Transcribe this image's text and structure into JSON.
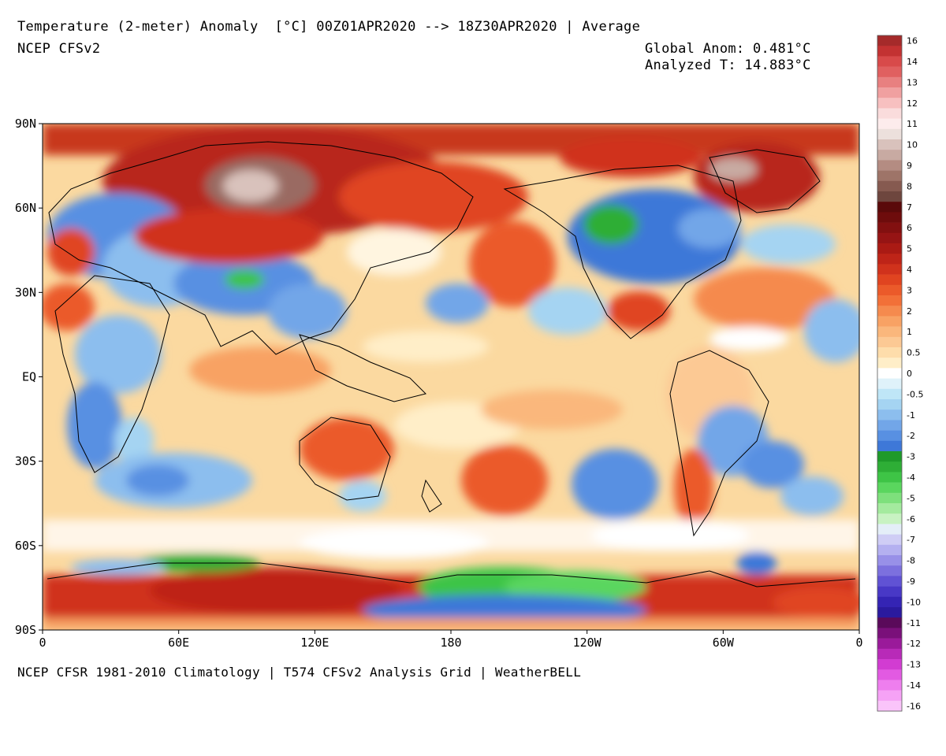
{
  "header": {
    "title": "Temperature (2-meter) Anomaly  [°C] 00Z01APR2020 --> 18Z30APR2020 | Average",
    "model": "NCEP CFSv2",
    "global_anom": "Global Anom: 0.481°C",
    "analyzed_t": "Analyzed T: 14.883°C"
  },
  "footer": {
    "text": "NCEP CFSR 1981-2010 Climatology | T574 CFSv2 Analysis Grid | WeatherBELL"
  },
  "map": {
    "lat_labels": [
      "90N",
      "60N",
      "30N",
      "EQ",
      "30S",
      "60S",
      "90S"
    ],
    "lon_labels": [
      "0",
      "60E",
      "120E",
      "180",
      "120W",
      "60W",
      "0"
    ],
    "ocean_base_color": "#fbd9a0"
  },
  "colorbar": {
    "bins": [
      {
        "label": "16",
        "color": "#a52a2a"
      },
      {
        "label": "",
        "color": "#c33232"
      },
      {
        "label": "14",
        "color": "#d84a4a"
      },
      {
        "label": "",
        "color": "#e06060"
      },
      {
        "label": "13",
        "color": "#e88080"
      },
      {
        "label": "",
        "color": "#f0a0a0"
      },
      {
        "label": "12",
        "color": "#f7c0c0"
      },
      {
        "label": "",
        "color": "#fadcdc"
      },
      {
        "label": "11",
        "color": "#fdecec"
      },
      {
        "label": "",
        "color": "#ece0dc"
      },
      {
        "label": "10",
        "color": "#d9c2bc"
      },
      {
        "label": "",
        "color": "#c8aaa2"
      },
      {
        "label": "9",
        "color": "#b48c82"
      },
      {
        "label": "",
        "color": "#9e7468"
      },
      {
        "label": "8",
        "color": "#865a50"
      },
      {
        "label": "",
        "color": "#6e463e"
      },
      {
        "label": "7",
        "color": "#5a0a0a"
      },
      {
        "label": "",
        "color": "#6e0c0c"
      },
      {
        "label": "6",
        "color": "#821010"
      },
      {
        "label": "",
        "color": "#961414"
      },
      {
        "label": "5",
        "color": "#aa1a14"
      },
      {
        "label": "",
        "color": "#be2418"
      },
      {
        "label": "4",
        "color": "#d0321c"
      },
      {
        "label": "",
        "color": "#e04420"
      },
      {
        "label": "3",
        "color": "#eb5a2a"
      },
      {
        "label": "",
        "color": "#f27038"
      },
      {
        "label": "2",
        "color": "#f58a4e"
      },
      {
        "label": "",
        "color": "#f8a264"
      },
      {
        "label": "1",
        "color": "#fab77c"
      },
      {
        "label": "",
        "color": "#fcc994"
      },
      {
        "label": "0.5",
        "color": "#feddab"
      },
      {
        "label": "",
        "color": "#ffeec8"
      },
      {
        "label": "0",
        "color": "#ffffff"
      },
      {
        "label": "",
        "color": "#dff2fa"
      },
      {
        "label": "-0.5",
        "color": "#bfe6f7"
      },
      {
        "label": "",
        "color": "#a5d4f2"
      },
      {
        "label": "-1",
        "color": "#8cbeee"
      },
      {
        "label": "",
        "color": "#72a6e8"
      },
      {
        "label": "-2",
        "color": "#5890e2"
      },
      {
        "label": "",
        "color": "#3e78d8"
      },
      {
        "label": "-3",
        "color": "#1f9a2a"
      },
      {
        "label": "",
        "color": "#2eae36"
      },
      {
        "label": "-4",
        "color": "#3ec446"
      },
      {
        "label": "",
        "color": "#5ad65e"
      },
      {
        "label": "-5",
        "color": "#7ee07c"
      },
      {
        "label": "",
        "color": "#a4ea9e"
      },
      {
        "label": "-6",
        "color": "#c8f2c2"
      },
      {
        "label": "",
        "color": "#e4eef8"
      },
      {
        "label": "-7",
        "color": "#cfcdf5"
      },
      {
        "label": "",
        "color": "#b4b0f0"
      },
      {
        "label": "-8",
        "color": "#9890e8"
      },
      {
        "label": "",
        "color": "#7c70de"
      },
      {
        "label": "-9",
        "color": "#6052d4"
      },
      {
        "label": "",
        "color": "#4838c6"
      },
      {
        "label": "-10",
        "color": "#3424b4"
      },
      {
        "label": "",
        "color": "#2a1a9e"
      },
      {
        "label": "-11",
        "color": "#5a0a5a"
      },
      {
        "label": "",
        "color": "#7a107a"
      },
      {
        "label": "-12",
        "color": "#9a1a9a"
      },
      {
        "label": "",
        "color": "#b82ab8"
      },
      {
        "label": "-13",
        "color": "#d23cd2"
      },
      {
        "label": "",
        "color": "#e25ae2"
      },
      {
        "label": "-14",
        "color": "#ee7eee"
      },
      {
        "label": "",
        "color": "#f6a2f6"
      },
      {
        "label": "-16",
        "color": "#fac4fa"
      }
    ]
  }
}
